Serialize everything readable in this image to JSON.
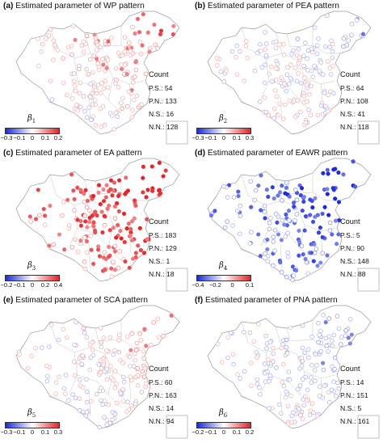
{
  "panels": [
    {
      "tag": "(a)",
      "title": "Estimated parameter of WP pattern",
      "beta": "β",
      "beta_sub": "1",
      "colorbar_ticks": [
        "−0.3",
        "−0.1",
        "0",
        "0.1",
        "0.2"
      ],
      "count": {
        "label": "Count",
        "ps": "P.S.: 54",
        "pn": "P.N.: 133",
        "ns": "N.S.: 16",
        "nn": "N.N.: 128"
      },
      "bias": 0.35
    },
    {
      "tag": "(b)",
      "title": "Estimated parameter of PEA pattern",
      "beta": "β",
      "beta_sub": "2",
      "colorbar_ticks": [
        "−0.3",
        "−0.1",
        "0",
        "0.1",
        "0.3"
      ],
      "count": {
        "label": "Count",
        "ps": "P.S.: 64",
        "pn": "P.N.: 108",
        "ns": "N.S.: 41",
        "nn": "N.N.: 118"
      },
      "bias": -0.05
    },
    {
      "tag": "(c)",
      "title": "Estimated parameter of EA pattern",
      "beta": "β",
      "beta_sub": "3",
      "colorbar_ticks": [
        "−0.2",
        "−0.1",
        "0",
        "0.2",
        "0.4"
      ],
      "count": {
        "label": "Count",
        "ps": "P.S.: 183",
        "pn": "P.N.: 129",
        "ns": "N.S.: 1",
        "nn": "N.N.: 18"
      },
      "bias": 0.9
    },
    {
      "tag": "(d)",
      "title": "Estimated parameter of EAWR pattern",
      "beta": "β",
      "beta_sub": "4",
      "colorbar_ticks": [
        "−0.4",
        "−0.2",
        "0",
        "0.1"
      ],
      "count": {
        "label": "Count",
        "ps": "P.S.: 5",
        "pn": "P.N.: 90",
        "ns": "N.S.: 148",
        "nn": "N.N.: 88"
      },
      "bias": -0.85
    },
    {
      "tag": "(e)",
      "title": "Estimated parameter of SCA pattern",
      "beta": "β",
      "beta_sub": "5",
      "colorbar_ticks": [
        "−0.3",
        "−0.1",
        "0",
        "0.1",
        "0.3"
      ],
      "count": {
        "label": "Count",
        "ps": "P.S.: 60",
        "pn": "P.N.: 163",
        "ns": "N.S.: 14",
        "nn": "N.N.: 94"
      },
      "bias": 0.15
    },
    {
      "tag": "(f)",
      "title": "Estimated parameter of PNA pattern",
      "beta": "β",
      "beta_sub": "6",
      "colorbar_ticks": [
        "−0.2",
        "−0.1",
        "0",
        "0.1",
        "0.2"
      ],
      "count": {
        "label": "Count",
        "ps": "P.S.: 14",
        "pn": "P.N.: 151",
        "ns": "N.S.: 5",
        "nn": "N.N.: 161"
      },
      "bias": -0.2
    }
  ],
  "colors": {
    "negative": "#1a2bd6",
    "positive": "#e0262a",
    "neutral": "#ffffff",
    "border": "#9a9a9a"
  }
}
